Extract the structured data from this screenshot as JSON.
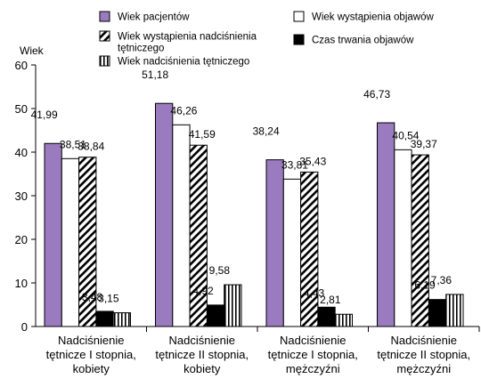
{
  "chart_data": {
    "type": "bar",
    "title": "",
    "xlabel": "",
    "ylabel": "Wiek",
    "ylim": [
      0,
      60
    ],
    "yticks": [
      0,
      10,
      20,
      30,
      40,
      50,
      60
    ],
    "grid": false,
    "legend_position": "top",
    "categories": [
      [
        "Nadciśnienie",
        "tętnicze I stopnia,",
        "kobiety"
      ],
      [
        "Nadciśnienie",
        "tętnicze II stopnia,",
        "kobiety"
      ],
      [
        "Nadciśnienie",
        "tętnicze I stopnia,",
        "mężczyźni"
      ],
      [
        "Nadciśnienie",
        "tętnicze II stopnia,",
        "mężczyźni"
      ]
    ],
    "series": [
      {
        "name": "Wiek pacjentów",
        "pattern": "solid",
        "color": "#9b7bbf",
        "values": [
          41.99,
          51.18,
          38.24,
          46.73
        ],
        "labels": [
          "41,99",
          "51,18",
          "38,24",
          "46,73"
        ]
      },
      {
        "name": "Wiek wystąpienia objawów",
        "pattern": "white",
        "color": "#ffffff",
        "values": [
          38.51,
          46.26,
          33.81,
          40.54
        ],
        "labels": [
          "38,51",
          "46,26",
          "33,81",
          "40,54"
        ]
      },
      {
        "name": [
          "Wiek wystąpienia nadciśnienia",
          "tętniczego"
        ],
        "pattern": "diagonal",
        "color": "#ffffff",
        "values": [
          38.84,
          41.59,
          35.43,
          39.37
        ],
        "labels": [
          "38,84",
          "41,59",
          "35,43",
          "39,37"
        ]
      },
      {
        "name": "Czas trwania objawów",
        "pattern": "black",
        "color": "#000000",
        "values": [
          3.48,
          4.92,
          4.43,
          6.19
        ],
        "labels": [
          "3,48",
          "4,92",
          "4,43",
          "6,19"
        ]
      },
      {
        "name": "Wiek nadciśnienia tętniczego",
        "pattern": "vertical",
        "color": "#ffffff",
        "values": [
          3.15,
          9.58,
          2.81,
          7.36
        ],
        "labels": [
          "3,15",
          "9,58",
          "2,81",
          "7,36"
        ]
      }
    ]
  }
}
